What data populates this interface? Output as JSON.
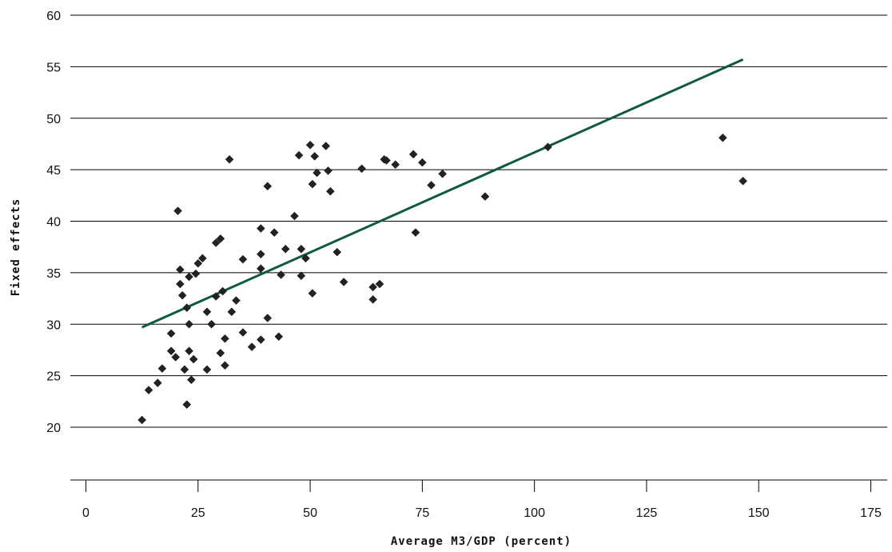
{
  "chart_data": {
    "type": "scatter",
    "title": "",
    "xlabel": "Average M3/GDP (percent)",
    "ylabel": "Fixed effects",
    "xlim": [
      -5,
      180
    ],
    "ylim": [
      15,
      60
    ],
    "x_ticks": [
      0,
      25,
      50,
      75,
      100,
      125,
      150,
      175
    ],
    "y_ticks": [
      20,
      25,
      30,
      35,
      40,
      45,
      50,
      55,
      60
    ],
    "grid": "horizontal",
    "legend": "none",
    "colors": {
      "points": "#222222",
      "trend": "#0f5a3f"
    },
    "points": [
      [
        12.5,
        20.7
      ],
      [
        14,
        23.6
      ],
      [
        16,
        24.3
      ],
      [
        17,
        25.7
      ],
      [
        19,
        29.1
      ],
      [
        19,
        27.4
      ],
      [
        20,
        26.8
      ],
      [
        20.5,
        41
      ],
      [
        21,
        35.3
      ],
      [
        21,
        33.9
      ],
      [
        21.5,
        32.8
      ],
      [
        22,
        25.6
      ],
      [
        22.5,
        31.6
      ],
      [
        22.5,
        22.2
      ],
      [
        23,
        27.4
      ],
      [
        23,
        30
      ],
      [
        23,
        34.6
      ],
      [
        23.5,
        24.6
      ],
      [
        24,
        26.6
      ],
      [
        24.5,
        34.9
      ],
      [
        25,
        35.9
      ],
      [
        26,
        36.4
      ],
      [
        27,
        31.2
      ],
      [
        27,
        25.6
      ],
      [
        28,
        30
      ],
      [
        29,
        32.7
      ],
      [
        29,
        37.9
      ],
      [
        30,
        38.3
      ],
      [
        30,
        27.2
      ],
      [
        30.5,
        33.2
      ],
      [
        31,
        28.6
      ],
      [
        31,
        26
      ],
      [
        32,
        46
      ],
      [
        32.5,
        31.2
      ],
      [
        33.5,
        32.3
      ],
      [
        35,
        36.3
      ],
      [
        35,
        29.2
      ],
      [
        37,
        27.8
      ],
      [
        39,
        39.3
      ],
      [
        39,
        36.8
      ],
      [
        39,
        35.4
      ],
      [
        39,
        28.5
      ],
      [
        40.5,
        43.4
      ],
      [
        40.5,
        30.6
      ],
      [
        42,
        38.9
      ],
      [
        43,
        28.8
      ],
      [
        43.5,
        34.8
      ],
      [
        44.5,
        37.3
      ],
      [
        46.5,
        40.5
      ],
      [
        47.5,
        46.4
      ],
      [
        48,
        37.3
      ],
      [
        48,
        34.7
      ],
      [
        49,
        36.4
      ],
      [
        50,
        47.4
      ],
      [
        50.5,
        43.6
      ],
      [
        50.5,
        33
      ],
      [
        51,
        46.3
      ],
      [
        51.5,
        44.7
      ],
      [
        53.5,
        47.3
      ],
      [
        54,
        44.9
      ],
      [
        54.5,
        42.9
      ],
      [
        56,
        37
      ],
      [
        57.5,
        34.1
      ],
      [
        61.5,
        45.1
      ],
      [
        64,
        33.6
      ],
      [
        64,
        32.4
      ],
      [
        65.5,
        33.9
      ],
      [
        66.5,
        46
      ],
      [
        67,
        45.9
      ],
      [
        69,
        45.5
      ],
      [
        73,
        46.5
      ],
      [
        73.5,
        38.9
      ],
      [
        75,
        45.7
      ],
      [
        77,
        43.5
      ],
      [
        79.5,
        44.6
      ],
      [
        89,
        42.4
      ],
      [
        103,
        47.2
      ],
      [
        142,
        48.1
      ],
      [
        146.5,
        43.9
      ]
    ],
    "trendline": {
      "x": [
        12.5,
        146.5
      ],
      "y": [
        29.7,
        55.7
      ]
    }
  }
}
